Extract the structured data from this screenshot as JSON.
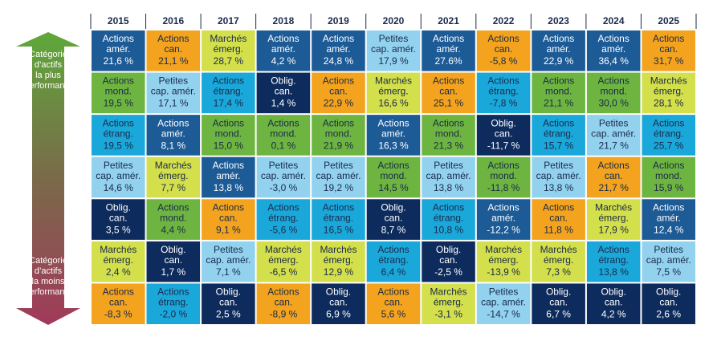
{
  "years": [
    "2015",
    "2016",
    "2017",
    "2018",
    "2019",
    "2020",
    "2021",
    "2022",
    "2023",
    "2024",
    "2025"
  ],
  "top_label": [
    "Catégorie",
    "d’actifs",
    "la plus",
    "performante"
  ],
  "bottom_label": [
    "Catégorie",
    "d’actifs",
    "la moins",
    "performante"
  ],
  "colors": {
    "Actions amér.": "#1d5b97",
    "Actions can.": "#f3a31d",
    "Marchés émerg.": "#d3df4b",
    "Oblig. can.": "#0d2b5c",
    "Petites cap. amér.": "#92d2ee",
    "Actions mond.": "#6eb440",
    "Actions étrang.": "#1aa7d9"
  },
  "light_text": [
    "Actions amér.",
    "Oblig. can."
  ],
  "rows": [
    [
      {
        "lines": [
          "Actions",
          "amér."
        ],
        "value": "21,6 %"
      },
      {
        "lines": [
          "Actions",
          "can."
        ],
        "value": "21,1 %"
      },
      {
        "lines": [
          "Marchés",
          "émerg."
        ],
        "value": "28,7 %"
      },
      {
        "lines": [
          "Actions",
          "amér."
        ],
        "value": "4,2 %"
      },
      {
        "lines": [
          "Actions",
          "amér."
        ],
        "value": "24,8 %"
      },
      {
        "lines": [
          "Petites",
          "cap. amér."
        ],
        "value": "17,9 %"
      },
      {
        "lines": [
          "Actions",
          "amér."
        ],
        "value": "27.6%"
      },
      {
        "lines": [
          "Actions",
          "can."
        ],
        "value": "-5,8 %"
      },
      {
        "lines": [
          "Actions",
          "amér."
        ],
        "value": "22,9 %"
      },
      {
        "lines": [
          "Actions",
          "amér."
        ],
        "value": "36,4 %"
      },
      {
        "lines": [
          "Actions",
          "can."
        ],
        "value": "31,7 %"
      }
    ],
    [
      {
        "lines": [
          "Actions",
          "mond."
        ],
        "value": "19,5 %"
      },
      {
        "lines": [
          "Petites",
          "cap. amér."
        ],
        "value": "17,1 %"
      },
      {
        "lines": [
          "Actions",
          "étrang."
        ],
        "value": "17,4 %"
      },
      {
        "lines": [
          "Oblig.",
          "can."
        ],
        "value": "1,4 %"
      },
      {
        "lines": [
          "Actions",
          "can."
        ],
        "value": "22,9 %"
      },
      {
        "lines": [
          "Marchés",
          "émerg."
        ],
        "value": "16,6 %"
      },
      {
        "lines": [
          "Actions",
          "can."
        ],
        "value": "25,1 %"
      },
      {
        "lines": [
          "Actions",
          "étrang."
        ],
        "value": "-7,8 %"
      },
      {
        "lines": [
          "Actions",
          "mond."
        ],
        "value": "21,1 %"
      },
      {
        "lines": [
          "Actions",
          "mond."
        ],
        "value": "30,0 %"
      },
      {
        "lines": [
          "Marchés",
          "émerg."
        ],
        "value": "28,1 %"
      }
    ],
    [
      {
        "lines": [
          "Actions",
          "étrang."
        ],
        "value": "19,5 %"
      },
      {
        "lines": [
          "Actions",
          "amér."
        ],
        "value": "8,1 %"
      },
      {
        "lines": [
          "Actions",
          "mond."
        ],
        "value": "15,0 %"
      },
      {
        "lines": [
          "Actions",
          "mond."
        ],
        "value": "0,1 %"
      },
      {
        "lines": [
          "Actions",
          "mond."
        ],
        "value": "21,9 %"
      },
      {
        "lines": [
          "Actions",
          "amér."
        ],
        "value": "16,3 %"
      },
      {
        "lines": [
          "Actions",
          "mond."
        ],
        "value": "21,3 %"
      },
      {
        "lines": [
          "Oblig.",
          "can."
        ],
        "value": "-11,7 %"
      },
      {
        "lines": [
          "Actions",
          "étrang."
        ],
        "value": "15,7 %"
      },
      {
        "lines": [
          "Petites",
          "cap. amér."
        ],
        "value": "21,7 %"
      },
      {
        "lines": [
          "Actions",
          "étrang."
        ],
        "value": "25,7 %"
      }
    ],
    [
      {
        "lines": [
          "Petites",
          "cap. amér."
        ],
        "value": "14,6 %"
      },
      {
        "lines": [
          "Marchés",
          "émerg."
        ],
        "value": "7,7 %"
      },
      {
        "lines": [
          "Actions",
          "amér."
        ],
        "value": "13,8 %"
      },
      {
        "lines": [
          "Petites",
          "cap. amér."
        ],
        "value": "-3,0 %"
      },
      {
        "lines": [
          "Petites",
          "cap. amér."
        ],
        "value": "19,2 %"
      },
      {
        "lines": [
          "Actions",
          "mond."
        ],
        "value": "14,5 %"
      },
      {
        "lines": [
          "Petites",
          "cap. amér."
        ],
        "value": "13,8 %"
      },
      {
        "lines": [
          "Actions",
          "mond."
        ],
        "value": "-11,8 %"
      },
      {
        "lines": [
          "Petites",
          "cap. amér."
        ],
        "value": "13,8 %"
      },
      {
        "lines": [
          "Actions",
          "can."
        ],
        "value": "21,7 %"
      },
      {
        "lines": [
          "Actions",
          "mond."
        ],
        "value": "15,9 %"
      }
    ],
    [
      {
        "lines": [
          "Oblig.",
          "can."
        ],
        "value": "3,5 %"
      },
      {
        "lines": [
          "Actions",
          "mond."
        ],
        "value": "4,4 %"
      },
      {
        "lines": [
          "Actions",
          "can."
        ],
        "value": "9,1 %"
      },
      {
        "lines": [
          "Actions",
          "étrang."
        ],
        "value": "-5,6 %"
      },
      {
        "lines": [
          "Actions",
          "étrang."
        ],
        "value": "16,5 %"
      },
      {
        "lines": [
          "Oblig.",
          "can."
        ],
        "value": "8,7 %"
      },
      {
        "lines": [
          "Actions",
          "étrang."
        ],
        "value": "10,8 %"
      },
      {
        "lines": [
          "Actions",
          "amér."
        ],
        "value": "-12,2 %"
      },
      {
        "lines": [
          "Actions",
          "can."
        ],
        "value": "11,8 %"
      },
      {
        "lines": [
          "Marchés",
          "émerg."
        ],
        "value": "17,9 %"
      },
      {
        "lines": [
          "Actions",
          "amér."
        ],
        "value": "12,4 %"
      }
    ],
    [
      {
        "lines": [
          "Marchés",
          "émerg."
        ],
        "value": "2,4 %"
      },
      {
        "lines": [
          "Oblig.",
          "can."
        ],
        "value": "1,7 %"
      },
      {
        "lines": [
          "Petites",
          "cap. amér."
        ],
        "value": "7,1 %"
      },
      {
        "lines": [
          "Marchés",
          "émerg."
        ],
        "value": "-6,5 %"
      },
      {
        "lines": [
          "Marchés",
          "émerg."
        ],
        "value": "12,9 %"
      },
      {
        "lines": [
          "Actions",
          "étrang."
        ],
        "value": "6,4 %"
      },
      {
        "lines": [
          "Oblig.",
          "can."
        ],
        "value": "-2,5 %"
      },
      {
        "lines": [
          "Marchés",
          "émerg."
        ],
        "value": "-13,9 %"
      },
      {
        "lines": [
          "Marchés",
          "émerg."
        ],
        "value": "7,3 %"
      },
      {
        "lines": [
          "Actions",
          "étrang."
        ],
        "value": "13,8 %"
      },
      {
        "lines": [
          "Petites",
          "cap. amér."
        ],
        "value": "7,5 %"
      }
    ],
    [
      {
        "lines": [
          "Actions",
          "can."
        ],
        "value": "-8,3 %"
      },
      {
        "lines": [
          "Actions",
          "étrang."
        ],
        "value": "-2,0 %"
      },
      {
        "lines": [
          "Oblig.",
          "can."
        ],
        "value": "2,5 %"
      },
      {
        "lines": [
          "Actions",
          "can."
        ],
        "value": "-8,9 %"
      },
      {
        "lines": [
          "Oblig.",
          "can."
        ],
        "value": "6,9 %"
      },
      {
        "lines": [
          "Actions",
          "can."
        ],
        "value": "5,6 %"
      },
      {
        "lines": [
          "Marchés",
          "émerg."
        ],
        "value": "-3,1 %"
      },
      {
        "lines": [
          "Petites",
          "cap. amér."
        ],
        "value": "-14,7 %"
      },
      {
        "lines": [
          "Oblig.",
          "can."
        ],
        "value": "6,7 %"
      },
      {
        "lines": [
          "Oblig.",
          "can."
        ],
        "value": "4,2 %"
      },
      {
        "lines": [
          "Oblig.",
          "can."
        ],
        "value": "2,6 %"
      }
    ]
  ]
}
